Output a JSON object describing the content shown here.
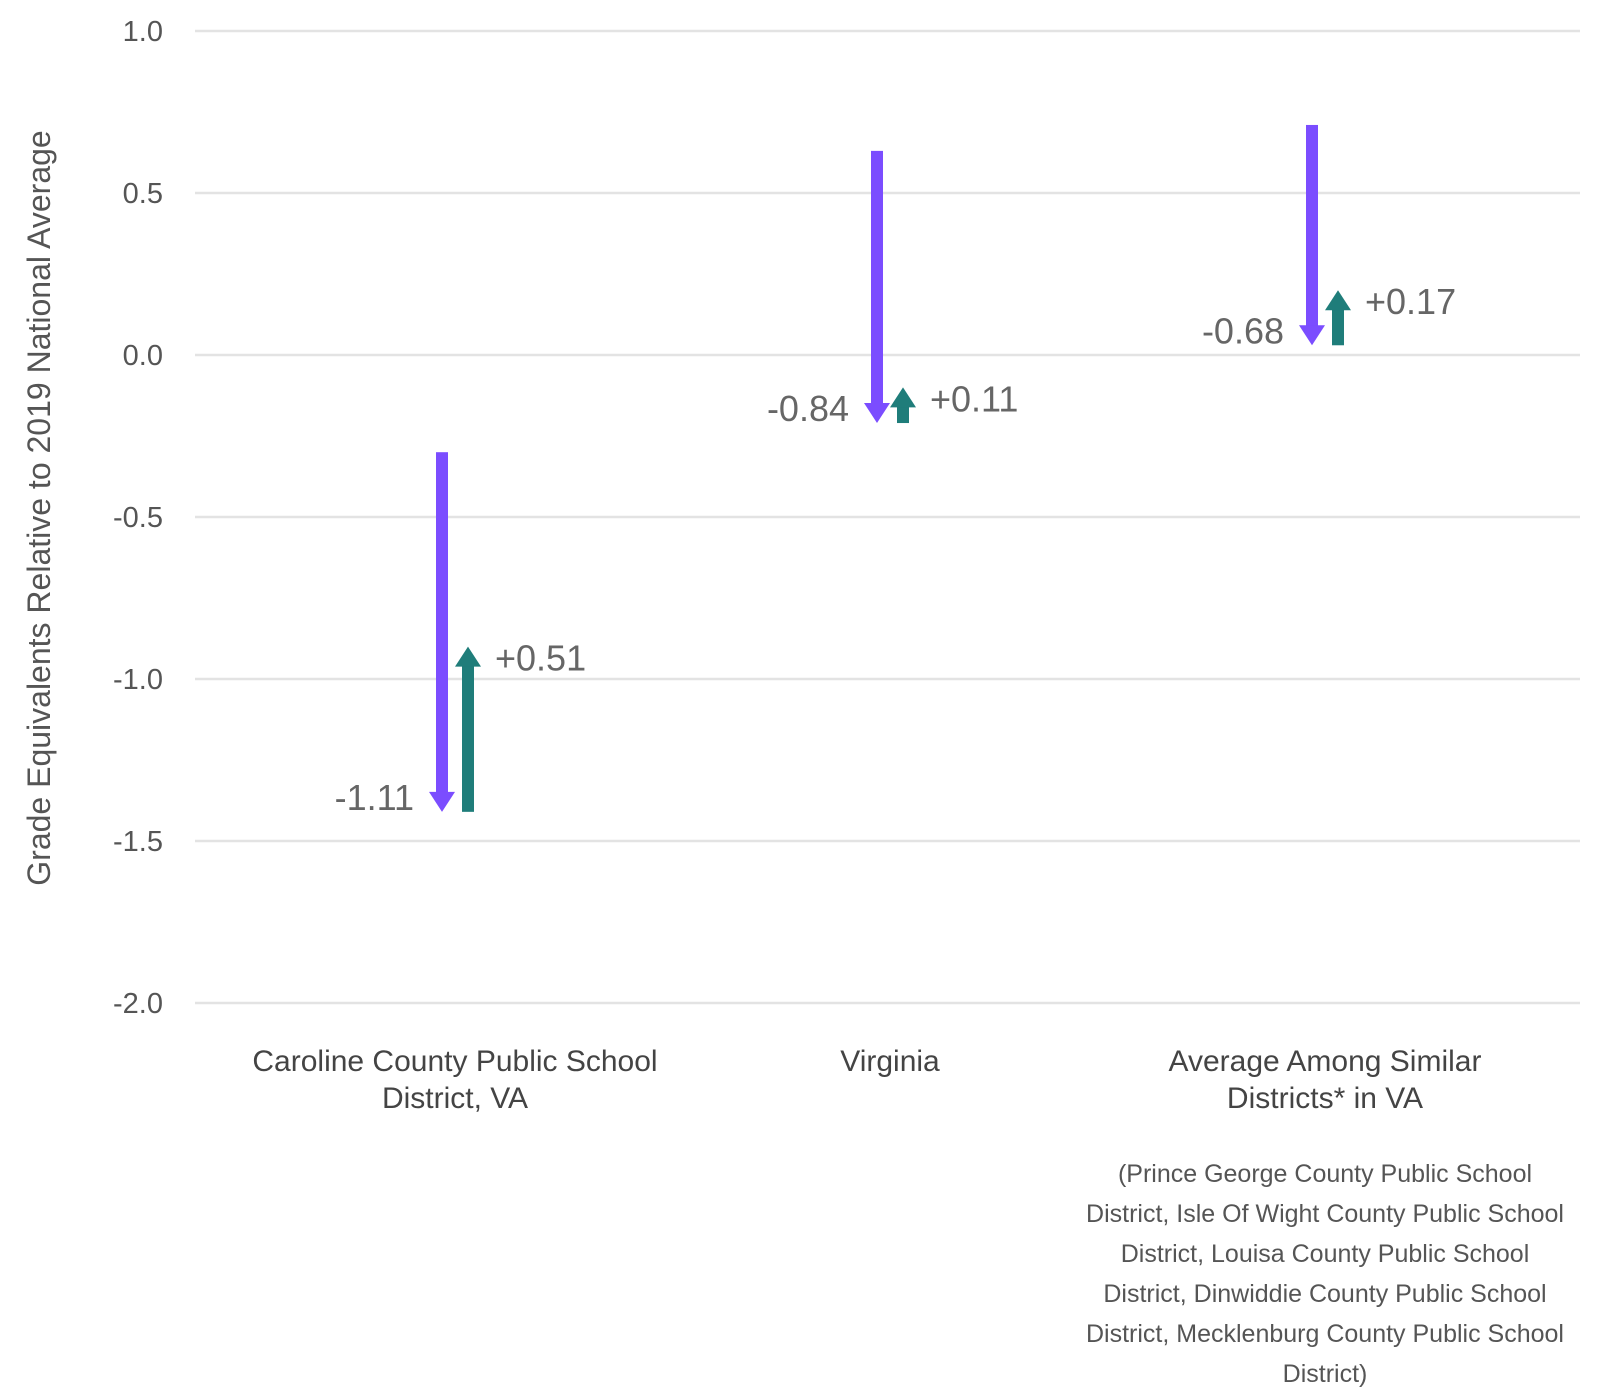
{
  "colors": {
    "decline": "#7b4dff",
    "recovery": "#1f7d7a",
    "grid": "#e3e3e3",
    "text": "#555555"
  },
  "chart_data": {
    "type": "arrow-range",
    "ylabel": "Grade Equivalents Relative to 2019 National Average",
    "ylim": [
      -2.0,
      1.0
    ],
    "yticks": [
      "1.0",
      "0.5",
      "0.0",
      "-0.5",
      "-1.0",
      "-1.5",
      "-2.0"
    ],
    "ytick_values": [
      1.0,
      0.5,
      0.0,
      -0.5,
      -1.0,
      -1.5,
      -2.0
    ],
    "grid": true,
    "groups": [
      {
        "label_lines": [
          "Caroline County Public School",
          "District, VA"
        ],
        "note_lines": [],
        "decline_start": -0.3,
        "decline_end": -1.41,
        "decline_label": "-1.11",
        "recovery_start": -1.41,
        "recovery_end": -0.9,
        "recovery_label": "+0.51"
      },
      {
        "label_lines": [
          "Virginia"
        ],
        "note_lines": [],
        "decline_start": 0.63,
        "decline_end": -0.21,
        "decline_label": "-0.84",
        "recovery_start": -0.21,
        "recovery_end": -0.1,
        "recovery_label": "+0.11"
      },
      {
        "label_lines": [
          "Average Among Similar",
          "Districts* in VA"
        ],
        "note_lines": [
          "(Prince George County Public School",
          "District, Isle Of Wight County Public School",
          "District, Louisa County Public School",
          "District, Dinwiddie County Public School",
          "District, Mecklenburg County Public School",
          "District)"
        ],
        "decline_start": 0.71,
        "decline_end": 0.03,
        "decline_label": "-0.68",
        "recovery_start": 0.03,
        "recovery_end": 0.2,
        "recovery_label": "+0.17"
      }
    ]
  }
}
